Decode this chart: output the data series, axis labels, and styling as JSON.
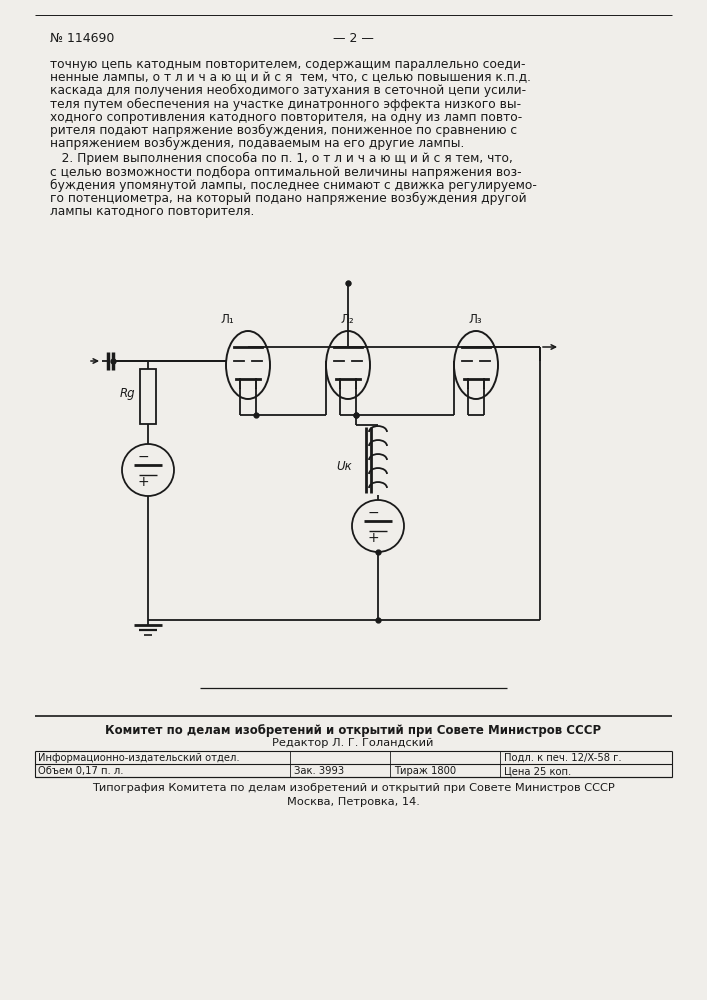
{
  "bg_color": "#f0eeea",
  "text_color": "#1a1a1a",
  "line_color": "#1a1a1a",
  "header_num": "№ 114690",
  "header_page": "— 2 —",
  "para1_lines": [
    "точную цепь катодным повторителем, содержащим параллельно соеди-",
    "ненные лампы, о т л и ч а ю щ и й с я  тем, что, с целью повышения к.п.д.",
    "каскада для получения необходимого затухания в сеточной цепи усили-",
    "теля путем обеспечения на участке динатронного эффекта низкого вы-",
    "ходного сопротивления катодного повторителя, на одну из ламп повто-",
    "рителя подают напряжение возбуждения, пониженное по сравнению с",
    "напряжением возбуждения, подаваемым на его другие лампы."
  ],
  "para2_lines": [
    "   2. Прием выполнения способа по п. 1, о т л и ч а ю щ и й с я тем, что,",
    "с целью возможности подбора оптимальной величины напряжения воз-",
    "буждения упомянутой лампы, последнее снимают с движка регулируемо-",
    "го потенциометра, на который подано напряжение возбуждения другой",
    "лампы катодного повторителя."
  ],
  "footer_committee": "Комитет по делам изобретений и открытий при Совете Министров СССР",
  "footer_editor": "Редактор Л. Г. Голандский",
  "footer_info": "Информационно-издательский отдел.",
  "footer_vol": "Объем 0,17 п. л.",
  "footer_zak": "Зак. 3993",
  "footer_tirazh": "Тираж 1800",
  "footer_podl": "Подл. к печ. 12/X-58 г.",
  "footer_cena": "Цена 25 коп.",
  "footer_tip": "Типография Комитета по делам изобретений и открытий при Совете Министров СССР",
  "footer_moscow": "Москва, Петровка, 14."
}
